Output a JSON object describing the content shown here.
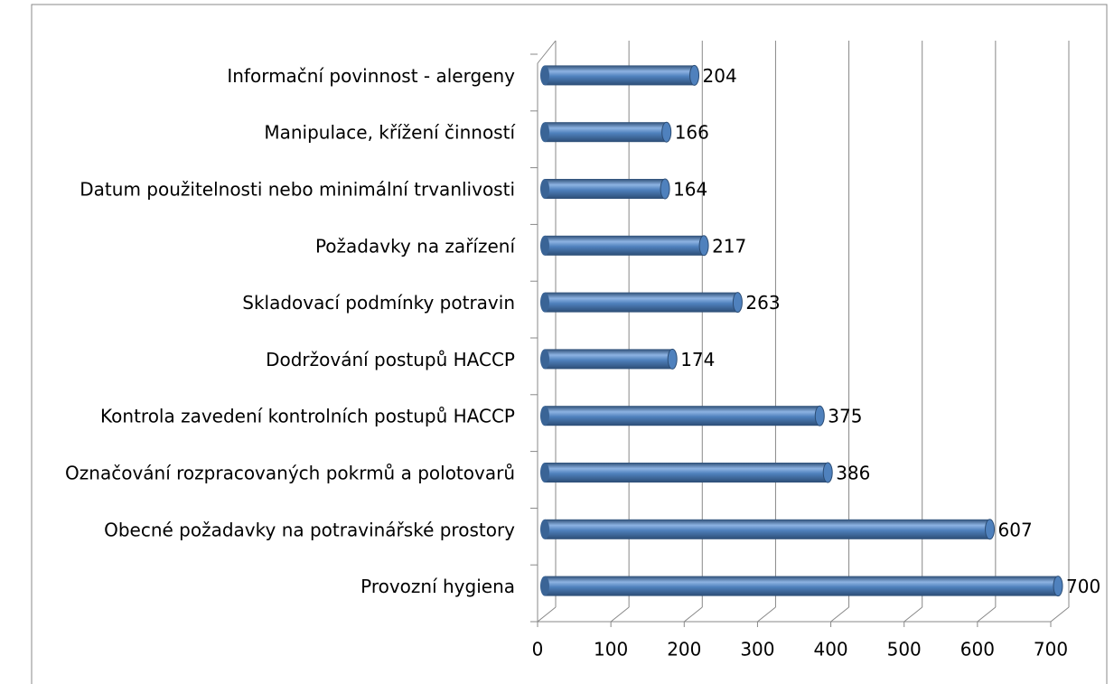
{
  "chart_data": {
    "type": "bar",
    "orientation": "horizontal",
    "categories": [
      "Provozní hygiena",
      "Obecné požadavky na potravinářské prostory",
      "Označování rozpracovaných pokrmů a polotovarů",
      "Kontrola zavedení kontrolních postupů HACCP",
      "Dodržování postupů HACCP",
      "Skladovací podmínky potravin",
      "Požadavky na zařízení",
      "Datum použitelnosti nebo minimální trvanlivosti",
      "Manipulace, křížení činností",
      "Informační povinnost - alergeny"
    ],
    "values": [
      700,
      607,
      386,
      375,
      174,
      263,
      217,
      164,
      166,
      204
    ],
    "color": "#4f81bd",
    "xlim": [
      0,
      700
    ],
    "xticks": [
      0,
      100,
      200,
      300,
      400,
      500,
      600,
      700
    ],
    "grid": true
  }
}
